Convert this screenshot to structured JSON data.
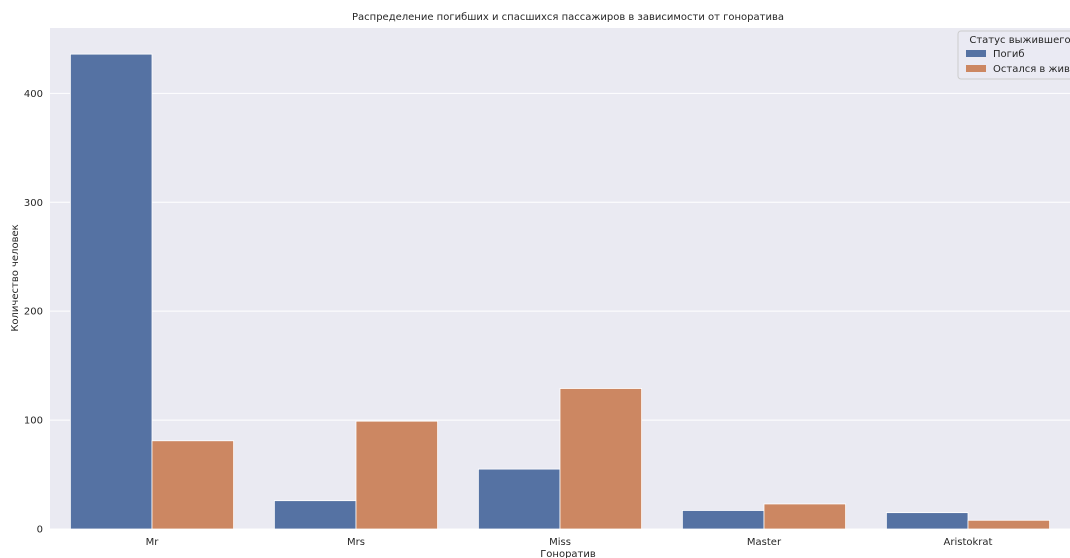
{
  "chart_data": {
    "type": "bar",
    "title": "Распределение погибших и спасшихся пассажиров в зависимости от гоноратива",
    "xlabel": "Гоноратив",
    "ylabel": "Количество человек",
    "categories": [
      "Mr",
      "Mrs",
      "Miss",
      "Master",
      "Aristokrat"
    ],
    "series": [
      {
        "name": "Погиб",
        "values": [
          436,
          26,
          55,
          17,
          15
        ]
      },
      {
        "name": "Остался в живых",
        "values": [
          81,
          99,
          129,
          23,
          8
        ]
      }
    ],
    "ylim": [
      0,
      460
    ],
    "yticks": [
      0,
      100,
      200,
      300,
      400
    ],
    "grid": true,
    "legend": {
      "title": "Статус выжившего",
      "position": "top-right"
    },
    "colors": {
      "plot_background": "#EAEAF2",
      "grid": "#FFFFFF",
      "series": [
        "#5572A3",
        "#CC8762"
      ]
    }
  }
}
